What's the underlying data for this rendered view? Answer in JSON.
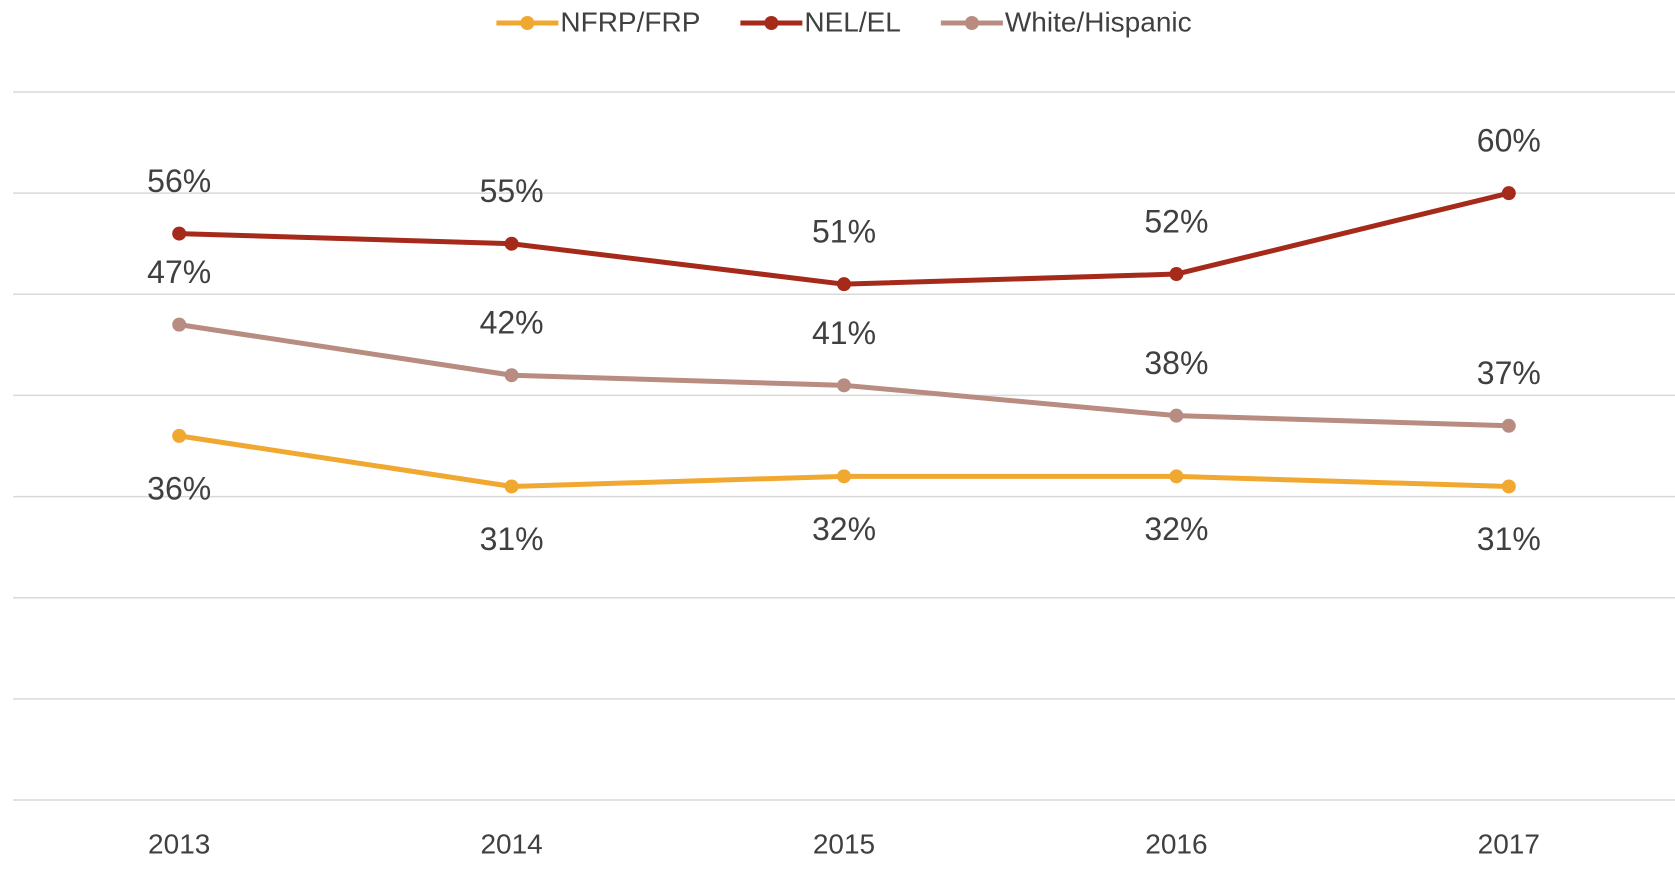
{
  "chart_data": {
    "type": "line",
    "categories": [
      "2013",
      "2014",
      "2015",
      "2016",
      "2017"
    ],
    "series": [
      {
        "name": "NFRP/FRP",
        "color": "#f0a830",
        "values": [
          36,
          31,
          32,
          32,
          31
        ],
        "value_labels": [
          "36%",
          "31%",
          "32%",
          "32%",
          "31%"
        ]
      },
      {
        "name": "NEL/EL",
        "color": "#a52a1a",
        "values": [
          56,
          55,
          51,
          52,
          60
        ],
        "value_labels": [
          "56%",
          "55%",
          "51%",
          "52%",
          "60%"
        ]
      },
      {
        "name": "White/Hispanic",
        "color": "#b88c80",
        "values": [
          47,
          42,
          41,
          38,
          37
        ],
        "value_labels": [
          "47%",
          "42%",
          "41%",
          "38%",
          "37%"
        ]
      }
    ],
    "ylim": [
      0,
      70
    ],
    "yticks": [
      0,
      10,
      20,
      30,
      40,
      50,
      60,
      70
    ],
    "grid": true,
    "legend": "top"
  }
}
